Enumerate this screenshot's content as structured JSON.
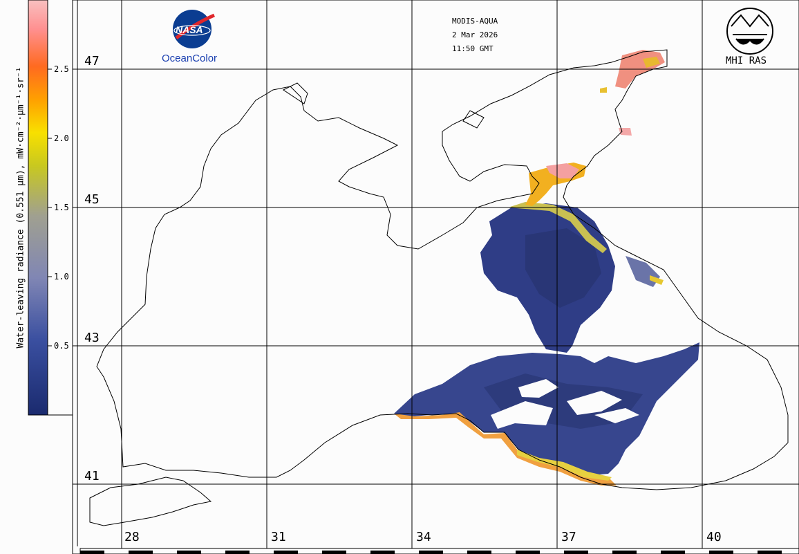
{
  "header": {
    "sensor": "MODIS-AQUA",
    "date": "2 Mar 2026",
    "time": "11:50 GMT"
  },
  "logos": {
    "nasa": "NASA",
    "oceancolor": "OceanColor",
    "mhi": "MHI RAS"
  },
  "colorbar": {
    "title": "Water-leaving radiance (0.551 µm), mW·cm⁻²·µm⁻¹·sr⁻¹",
    "ticks": [
      "2.5",
      "2.0",
      "1.5",
      "1.0",
      "0.5"
    ],
    "stops": [
      "#1a2a6e",
      "#3a4fa0",
      "#8086b4",
      "#a0a090",
      "#c8c820",
      "#f8e000",
      "#ffa000",
      "#ff6a20",
      "#ff9090",
      "#f8c0c0"
    ]
  },
  "grid": {
    "latitudes": [
      "47",
      "45",
      "43",
      "41"
    ],
    "longitudes": [
      "28",
      "31",
      "34",
      "37",
      "40"
    ]
  },
  "colors": {
    "deep_water": "#2b3a80",
    "mid_water": "#3f4e93",
    "turbid": "#d8c830",
    "coastal_high": "#f08c40",
    "coastal_pink": "#f4a0a0"
  }
}
